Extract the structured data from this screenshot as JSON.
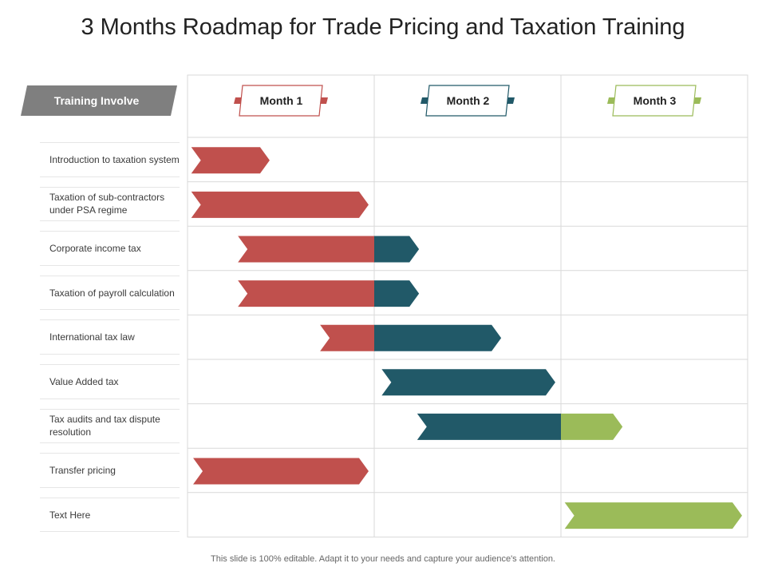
{
  "title": "3 Months Roadmap for Trade Pricing and Taxation Training",
  "header_label": "Training Involve",
  "months": [
    {
      "label": "Month 1",
      "color": "#c0504d"
    },
    {
      "label": "Month 2",
      "color": "#215968"
    },
    {
      "label": "Month 3",
      "color": "#9bbb59"
    }
  ],
  "tasks": [
    "Introduction to taxation system",
    "Taxation of sub-contractors under PSA regime",
    "Corporate income tax",
    "Taxation of payroll calculation",
    "International tax law",
    "Value Added tax",
    "Tax audits and tax dispute resolution",
    "Transfer pricing",
    "Text Here"
  ],
  "colors": {
    "month1": "#c0504d",
    "month2": "#215968",
    "month3": "#9bbb59",
    "header_badge": "#7f7f7f",
    "grid": "#d9d9d9"
  },
  "footer": "This slide is 100% editable. Adapt it to your needs and capture your audience's attention.",
  "chart_data": {
    "type": "gantt",
    "unit": "months",
    "bars": [
      {
        "task": "Introduction to taxation system",
        "start": 0.02,
        "end": 0.44
      },
      {
        "task": "Taxation of sub-contractors under PSA regime",
        "start": 0.02,
        "end": 0.97
      },
      {
        "task": "Corporate income tax",
        "start": 0.27,
        "end": 1.24
      },
      {
        "task": "Taxation of payroll calculation",
        "start": 0.27,
        "end": 1.24
      },
      {
        "task": "International tax law",
        "start": 0.71,
        "end": 1.68
      },
      {
        "task": "Value Added tax",
        "start": 1.04,
        "end": 1.97
      },
      {
        "task": "Tax audits and tax dispute resolution",
        "start": 1.23,
        "end": 2.33
      },
      {
        "task": "Transfer pricing",
        "start": 0.03,
        "end": 0.97
      },
      {
        "task": "Text Here",
        "start": 2.02,
        "end": 2.97
      }
    ]
  }
}
